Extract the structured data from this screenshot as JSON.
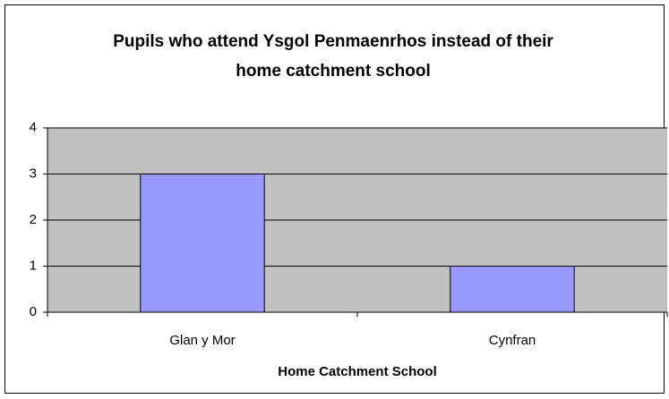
{
  "chart_data": {
    "type": "bar",
    "title": "Pupils who attend Ysgol Penmaenrhos instead of their home catchment school",
    "x_label": "Home Catchment School",
    "categories": [
      "Glan y Mor",
      "Cynfran"
    ],
    "values": [
      3,
      1
    ],
    "color": "#9999ff",
    "ylim": [
      0,
      4
    ],
    "yticks": [
      0,
      1,
      2,
      3,
      4
    ],
    "grid": true
  }
}
